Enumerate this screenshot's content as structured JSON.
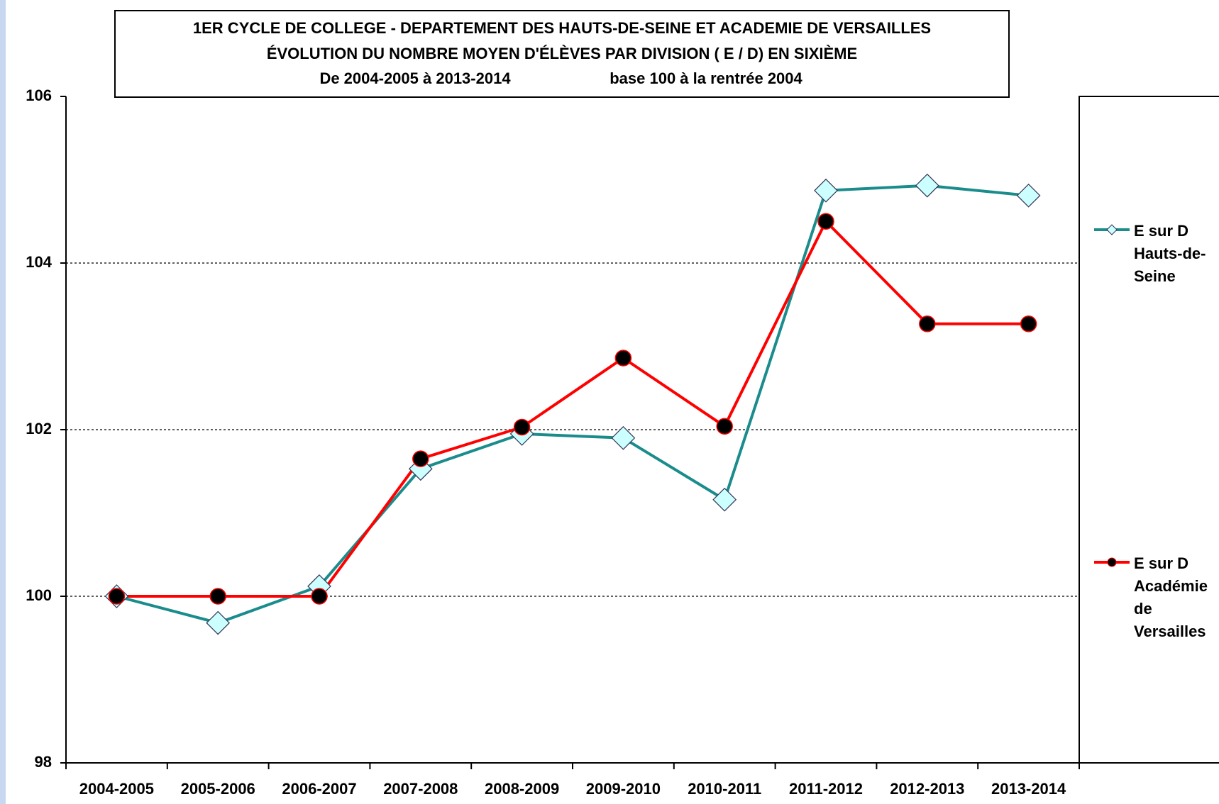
{
  "chart_data": {
    "type": "line",
    "title": [
      "1ER CYCLE DE COLLEGE - DEPARTEMENT DES HAUTS-DE-SEINE ET ACADEMIE DE VERSAILLES",
      "ÉVOLUTION DU NOMBRE MOYEN D'ÉLÈVES PAR DIVISION ( E / D) EN SIXIÈME",
      "De 2004-2005 à 2013-2014",
      "base 100 à la rentrée 2004"
    ],
    "categories": [
      "2004-2005",
      "2005-2006",
      "2006-2007",
      "2007-2008",
      "2008-2009",
      "2009-2010",
      "2010-2011",
      "2011-2012",
      "2012-2013",
      "2013-2014"
    ],
    "series": [
      {
        "name": "E sur D Hauts-de-Seine",
        "color": "#1b8c8c",
        "marker": "diamond",
        "marker_color": "#ccffff",
        "values": [
          100,
          99.68,
          100.12,
          101.53,
          101.95,
          101.9,
          101.16,
          104.87,
          104.93,
          104.81
        ]
      },
      {
        "name": "E sur D Académie de Versailles",
        "color": "#ff0000",
        "marker": "circle",
        "marker_color": "#000000",
        "values": [
          100,
          100,
          100,
          101.65,
          102.03,
          102.86,
          102.04,
          104.5,
          103.27,
          103.27
        ]
      }
    ],
    "ylim": [
      98,
      106
    ],
    "yticks": [
      98,
      100,
      102,
      104,
      106
    ],
    "grid": true
  }
}
